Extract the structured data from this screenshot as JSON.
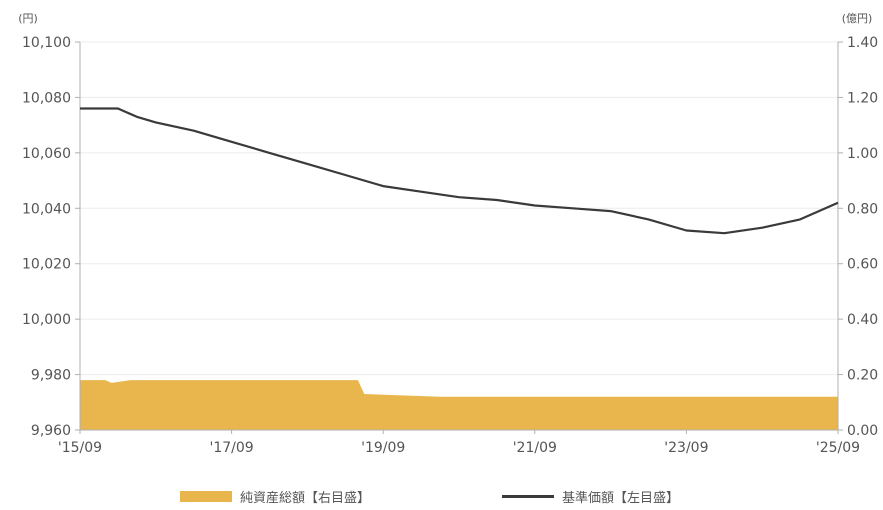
{
  "chart_data": {
    "type": "line+area",
    "left_axis_unit": "(円)",
    "right_axis_unit": "(億円)",
    "left_ylim": [
      9960,
      10100
    ],
    "left_ticks": [
      "10,100",
      "10,080",
      "10,060",
      "10,040",
      "10,020",
      "10,000",
      "9,980",
      "9,960"
    ],
    "right_ylim": [
      0.0,
      1.4
    ],
    "right_ticks": [
      "1.40",
      "1.20",
      "1.00",
      "0.80",
      "0.60",
      "0.40",
      "0.20",
      "0.00"
    ],
    "x_tick_labels": [
      "'15/09",
      "'17/09",
      "'19/09",
      "'21/09",
      "'23/09",
      "'25/09"
    ],
    "x_range": [
      "2015-09",
      "2025-09"
    ],
    "legend": [
      {
        "label": "純資産総額【右目盛】",
        "color": "#e8b64d"
      },
      {
        "label": "基準価額【左目盛】",
        "color": "#3a3a3a"
      }
    ],
    "series": [
      {
        "name": "基準価額【左目盛】",
        "axis": "left",
        "color": "#3a3a3a",
        "points": [
          [
            "2015-09",
            10076
          ],
          [
            "2016-03",
            10076
          ],
          [
            "2016-06",
            10073
          ],
          [
            "2016-09",
            10071
          ],
          [
            "2017-03",
            10068
          ],
          [
            "2017-09",
            10064
          ],
          [
            "2018-03",
            10060
          ],
          [
            "2018-09",
            10056
          ],
          [
            "2019-03",
            10052
          ],
          [
            "2019-09",
            10048
          ],
          [
            "2020-03",
            10046
          ],
          [
            "2020-09",
            10044
          ],
          [
            "2021-03",
            10043
          ],
          [
            "2021-09",
            10041
          ],
          [
            "2022-03",
            10040
          ],
          [
            "2022-09",
            10039
          ],
          [
            "2023-03",
            10036
          ],
          [
            "2023-09",
            10032
          ],
          [
            "2024-03",
            10031
          ],
          [
            "2024-09",
            10033
          ],
          [
            "2025-03",
            10036
          ],
          [
            "2025-09",
            10042
          ]
        ]
      },
      {
        "name": "純資産総額【右目盛】",
        "axis": "right",
        "color": "#e8b64d",
        "points": [
          [
            "2015-09",
            0.18
          ],
          [
            "2016-01",
            0.18
          ],
          [
            "2016-02",
            0.17
          ],
          [
            "2016-05",
            0.18
          ],
          [
            "2019-05",
            0.18
          ],
          [
            "2019-06",
            0.13
          ],
          [
            "2020-06",
            0.12
          ],
          [
            "2025-09",
            0.12
          ]
        ]
      }
    ]
  }
}
